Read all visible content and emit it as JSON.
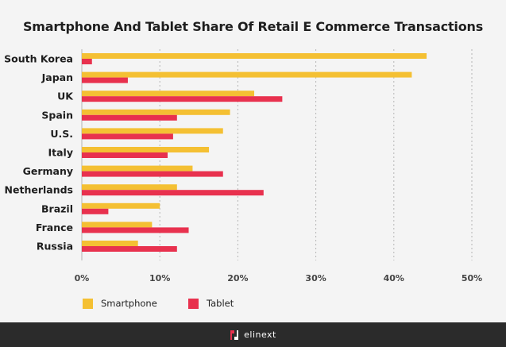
{
  "title": "Smartphone And Tablet Share Of Retail E Commerce Transactions",
  "colors": {
    "smartphone": "#f4c033",
    "tablet": "#e8314e",
    "grid": "#b5b5b5"
  },
  "chart_data": {
    "type": "bar",
    "orientation": "horizontal",
    "title": "Smartphone And Tablet Share Of Retail E Commerce Transactions",
    "categories": [
      "South Korea",
      "Japan",
      "UK",
      "Spain",
      "U.S.",
      "Italy",
      "Germany",
      "Netherlands",
      "Brazil",
      "France",
      "Russia"
    ],
    "series": [
      {
        "name": "Smartphone",
        "values": [
          44.2,
          42.3,
          22.1,
          19.0,
          18.1,
          16.3,
          14.2,
          12.2,
          10.0,
          9.0,
          7.2
        ]
      },
      {
        "name": "Tablet",
        "values": [
          1.3,
          5.9,
          25.7,
          12.2,
          11.7,
          11.0,
          18.1,
          23.3,
          3.4,
          13.7,
          12.2
        ]
      }
    ],
    "xlim": [
      0,
      50
    ],
    "xticks": [
      "0%",
      "10%",
      "20%",
      "30%",
      "40%",
      "50%"
    ],
    "grid": true,
    "legend_position": "bottom-left"
  },
  "legend": {
    "smartphone": "Smartphone",
    "tablet": "Tablet"
  },
  "footer": {
    "brand": "elinext"
  }
}
